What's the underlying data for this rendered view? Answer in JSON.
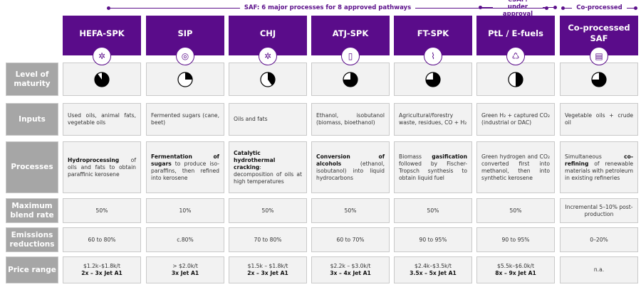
{
  "top_brackets": {
    "saf": "SAF: 6 major processes for 8 approved pathways",
    "esaf": "eSAF: under approval",
    "coprocessed": "Co-processed"
  },
  "row_labels": [
    "Level of maturity",
    "Inputs",
    "Processes",
    "Maximum blend rate",
    "Emissions reductions",
    "Price range"
  ],
  "columns": [
    {
      "name": "HEFA-SPK",
      "icon": "molecule-icon",
      "maturity": 0.9,
      "inputs": "Used oils, animal fats, vegetable oils",
      "process_bold": "Hydroprocessing",
      "process_rest": " of oils and fats to obtain paraffinic kerosene",
      "blend": "50%",
      "emissions": "60 to 80%",
      "price": "$1.2k–$1.8k/t",
      "price_multiple": "2x – 3x Jet A1"
    },
    {
      "name": "SIP",
      "icon": "sugar-cell-icon",
      "maturity": 0.25,
      "inputs": "Fermented sugars (cane, beet)",
      "process_bold": "Fermentation of sugars",
      "process_rest": " to produce iso-paraffins, then refined into kerosene",
      "blend": "10%",
      "emissions": "c.80%",
      "price": "> $2.0k/t",
      "price_multiple": "3x Jet A1"
    },
    {
      "name": "CHJ",
      "icon": "molecule-icon",
      "maturity": 0.4,
      "inputs": "Oils and fats",
      "process_bold": "Catalytic hydrothermal cracking",
      "process_rest": ": decomposition of oils at high temperatures",
      "blend": "50%",
      "emissions": "70 to 80%",
      "price": "$1.5k – $1.8k/t",
      "price_multiple": "2x – 3x Jet A1"
    },
    {
      "name": "ATJ-SPK",
      "icon": "flask-icon",
      "maturity": 0.75,
      "inputs": "Ethanol, isobutanol (biomass, bioethanol)",
      "process_bold": "Conversion of alcohols",
      "process_rest": " (ethanol, isobutanol) into liquid hydrocarbons",
      "blend": "50%",
      "emissions": "60 to 70%",
      "price": "$2.2k – $3.0k/t",
      "price_multiple": "3x – 4x Jet A1"
    },
    {
      "name": "FT-SPK",
      "icon": "leaf-icon",
      "maturity": 0.75,
      "inputs": "Agricultural/forestry waste, residues, CO + H₂",
      "process_pre": "Biomass ",
      "process_bold": "gasification",
      "process_rest": " followed by Fischer-Tropsch synthesis to obtain liquid fuel",
      "blend": "50%",
      "emissions": "90 to 95%",
      "price": "$2.4k–$3.5k/t",
      "price_multiple": "3.5x – 5x Jet A1"
    },
    {
      "name": "PtL / E-fuels",
      "icon": "recycle-icon",
      "maturity": 0.5,
      "inputs": "Green H₂ + captured CO₂ (industrial or DAC)",
      "process_bold": "",
      "process_rest": "Green hydrogen and CO₂ converted first into methanol, then into synthetic kerosene",
      "blend": "50%",
      "emissions": "90 to 95%",
      "price": "$5.5k–$6.0k/t",
      "price_multiple": "8x – 9x Jet A1"
    },
    {
      "name": "Co-processed SAF",
      "icon": "barrel-icon",
      "maturity": 0.75,
      "inputs": "Vegetable oils + crude oil",
      "process_pre": "Simultaneous ",
      "process_bold": "co-refining",
      "process_rest": " of renewable materials with petroleum in existing refineries",
      "blend": "Incremental 5–10% post-production",
      "emissions": "0–20%",
      "price": "n.a.",
      "price_multiple": ""
    }
  ],
  "colors": {
    "header": "#5a0c8a",
    "label_bg": "#a6a6a6",
    "cell_bg": "#f2f2f2"
  }
}
